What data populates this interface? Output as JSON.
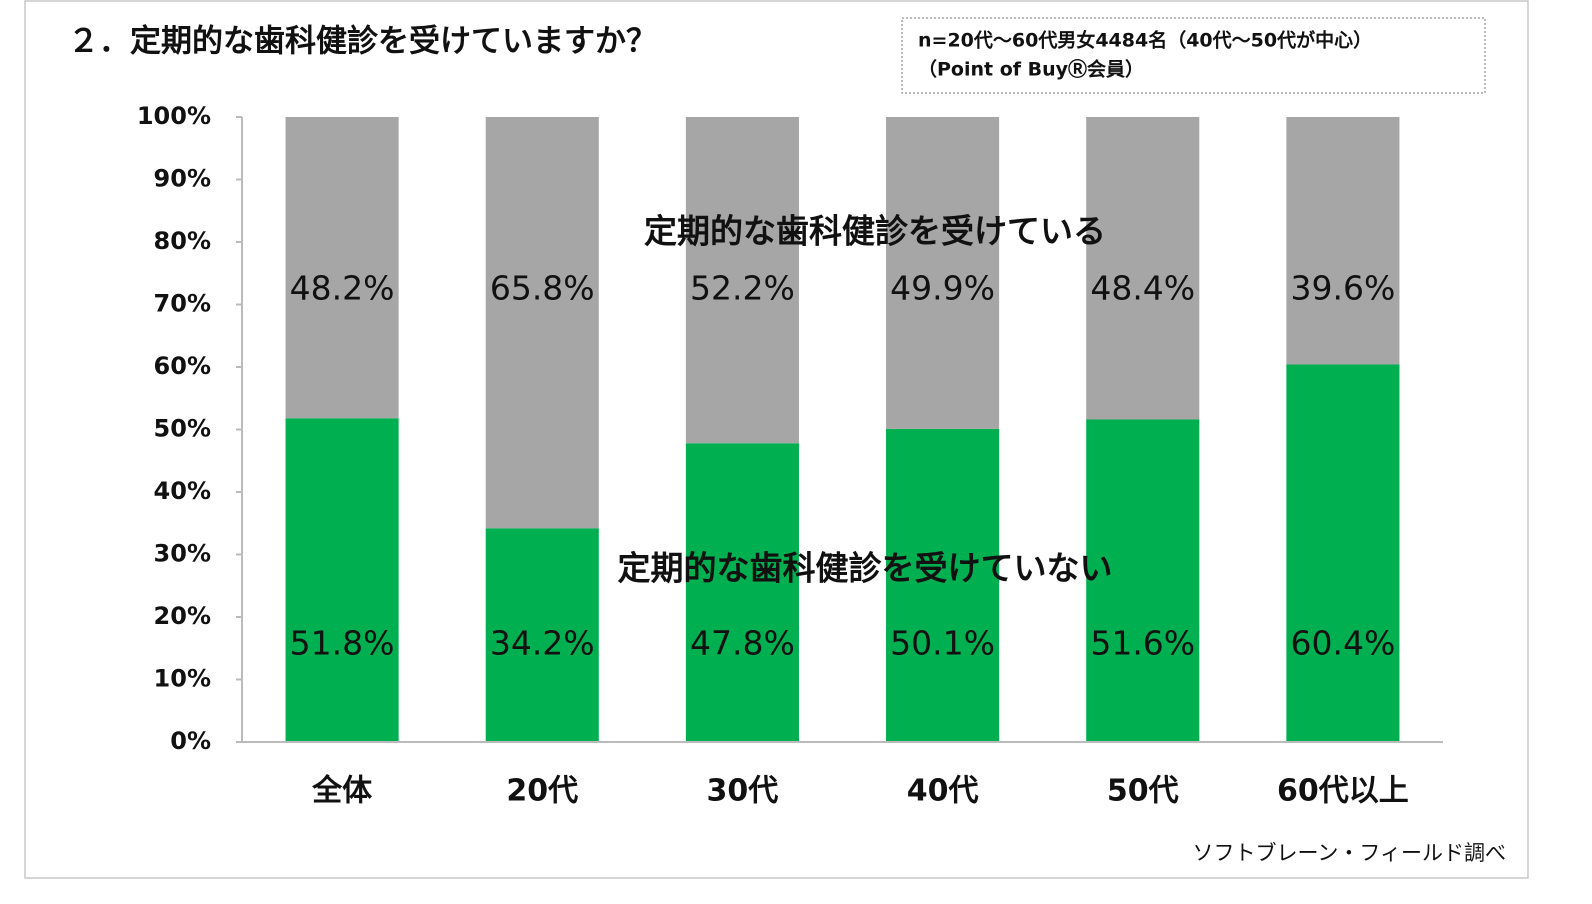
{
  "chart_data": {
    "type": "stacked_bar",
    "title": "２．定期的な歯科健診を受けていますか？",
    "note": [
      "n=20代～60代男女4484名（40代～50代が中心）",
      "（Point of BuyⓇ会員）"
    ],
    "source": "ソフトブレーン・フィールド調べ",
    "categories": [
      "全体",
      "20代",
      "30代",
      "40代",
      "50代",
      "60代以上"
    ],
    "series": [
      {
        "name": "定期的な歯科健診を受けていない",
        "color": "#00b050",
        "values": [
          51.8,
          34.2,
          47.8,
          50.1,
          51.6,
          60.4
        ],
        "value_labels": [
          "51.8%",
          "34.2%",
          "47.8%",
          "50.1%",
          "51.6%",
          "60.4%"
        ]
      },
      {
        "name": "定期的な歯科健診を受けている",
        "color": "#a6a6a6",
        "values": [
          48.2,
          65.8,
          52.2,
          49.9,
          48.4,
          39.6
        ],
        "value_labels": [
          "48.2%",
          "65.8%",
          "52.2%",
          "49.9%",
          "48.4%",
          "39.6%"
        ]
      }
    ],
    "ylim": [
      0,
      100
    ],
    "yticks": [
      {
        "value": 0,
        "label": "0%"
      },
      {
        "value": 10,
        "label": "10%"
      },
      {
        "value": 20,
        "label": "20%"
      },
      {
        "value": 30,
        "label": "30%"
      },
      {
        "value": 40,
        "label": "40%"
      },
      {
        "value": 50,
        "label": "50%"
      },
      {
        "value": 60,
        "label": "60%"
      },
      {
        "value": 70,
        "label": "70%"
      },
      {
        "value": 80,
        "label": "80%"
      },
      {
        "value": 90,
        "label": "90%"
      },
      {
        "value": 100,
        "label": "100%"
      }
    ],
    "grid": false
  }
}
